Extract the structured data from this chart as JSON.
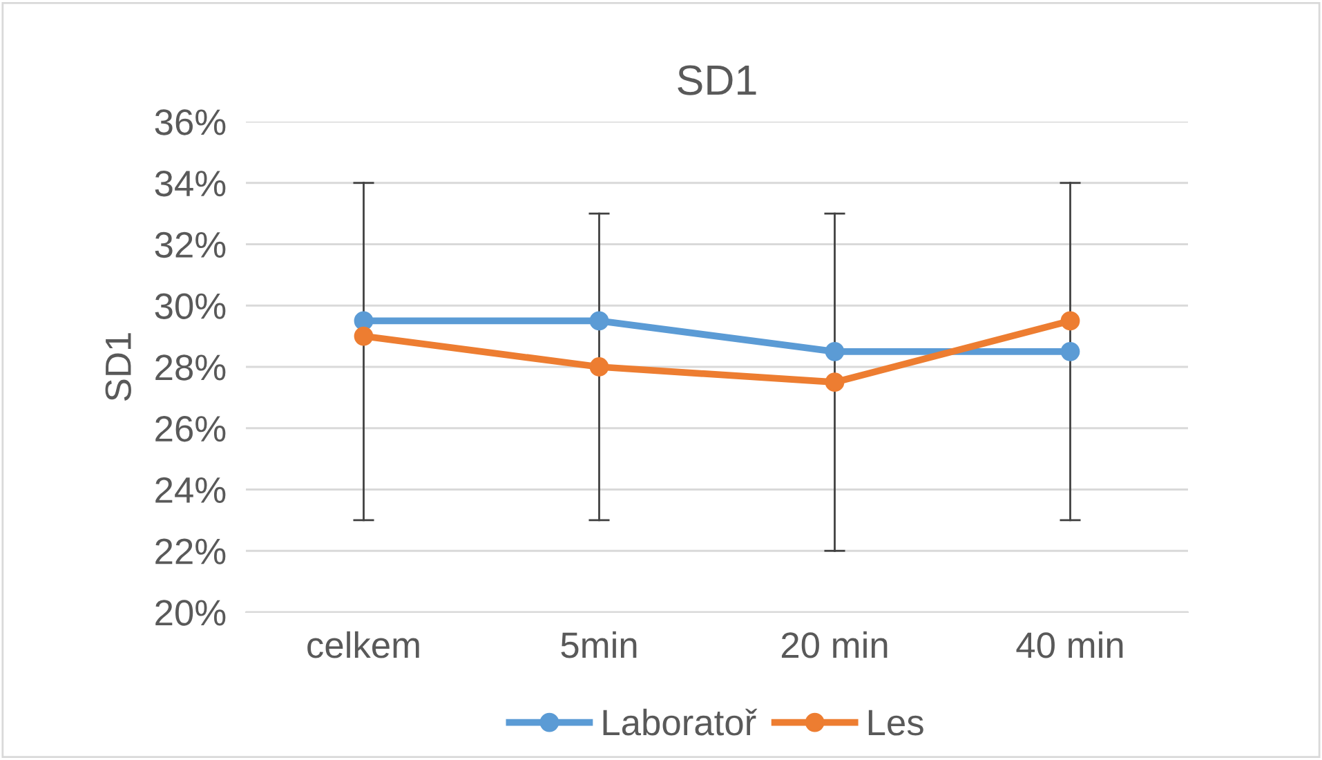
{
  "chart_data": {
    "type": "line",
    "title": "SD1",
    "ylabel": "SD1",
    "categories": [
      "celkem",
      "5min",
      "20 min",
      "40 min"
    ],
    "series": [
      {
        "name": "Laboratoř",
        "color": "#5b9bd5",
        "values": [
          29.5,
          29.5,
          28.5,
          28.5
        ],
        "errors": [
          [
            23,
            34
          ],
          [
            23,
            33
          ],
          [
            22,
            33
          ],
          [
            23,
            34
          ]
        ]
      },
      {
        "name": "Les",
        "color": "#ed7d31",
        "values": [
          29,
          28,
          27.5,
          29.5
        ]
      }
    ],
    "ylim": [
      20,
      36
    ],
    "yticks": [
      {
        "value": 20,
        "label": "20%"
      },
      {
        "value": 22,
        "label": "22%"
      },
      {
        "value": 24,
        "label": "24%"
      },
      {
        "value": 26,
        "label": "26%"
      },
      {
        "value": 28,
        "label": "28%"
      },
      {
        "value": 30,
        "label": "30%"
      },
      {
        "value": 32,
        "label": "32%"
      },
      {
        "value": 34,
        "label": "34%"
      },
      {
        "value": 36,
        "label": "36%"
      }
    ],
    "grid": "y",
    "legend": "bottom",
    "marker": "circle",
    "line_style": "solid"
  }
}
